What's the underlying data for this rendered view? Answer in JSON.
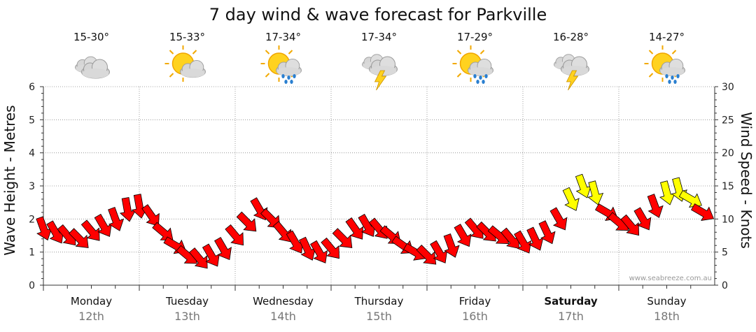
{
  "chart_data": {
    "type": "line",
    "title": "7 day wind & wave forecast for Parkville",
    "ylabel_left": "Wave Height - Metres",
    "ylabel_right": "Wind Speed - Knots",
    "ylim_left": [
      0,
      6
    ],
    "ylim_right": [
      0,
      30
    ],
    "left_ticks": [
      "0",
      "1",
      "2",
      "3",
      "4",
      "5",
      "6"
    ],
    "right_ticks": [
      "0",
      "5",
      "10",
      "15",
      "20",
      "25",
      "30"
    ],
    "credit": "www.seabreeze.com.au",
    "days": [
      {
        "name": "Monday",
        "date": "12th",
        "temp": "15-30°",
        "icon": "cloudy",
        "bold": false
      },
      {
        "name": "Tuesday",
        "date": "13th",
        "temp": "15-33°",
        "icon": "sun-cloud",
        "bold": false
      },
      {
        "name": "Wednesday",
        "date": "14th",
        "temp": "17-34°",
        "icon": "sun-rain",
        "bold": false
      },
      {
        "name": "Thursday",
        "date": "15th",
        "temp": "17-34°",
        "icon": "storm",
        "bold": false
      },
      {
        "name": "Friday",
        "date": "16th",
        "temp": "17-29°",
        "icon": "sun-rain",
        "bold": false
      },
      {
        "name": "Saturday",
        "date": "17th",
        "temp": "16-28°",
        "icon": "storm",
        "bold": true
      },
      {
        "name": "Sunday",
        "date": "18th",
        "temp": "14-27°",
        "icon": "sun-rain",
        "bold": false
      }
    ],
    "wind_series": {
      "name": "Wind Speed - Knots",
      "threshold_yellow": 12.5,
      "colors": {
        "low": "#ff0000",
        "high": "#ffff00",
        "outline": "#000000"
      },
      "hours": [
        0,
        3,
        6,
        9,
        12,
        15,
        18,
        21,
        24,
        27,
        30,
        33,
        36,
        39,
        42,
        45,
        48,
        51,
        54,
        57,
        60,
        63,
        66,
        69,
        72,
        75,
        78,
        81,
        84,
        87,
        90,
        93,
        96,
        99,
        102,
        105,
        108,
        111,
        114,
        117,
        120,
        123,
        126,
        129,
        132,
        135,
        138,
        141,
        144,
        147,
        150,
        153,
        156,
        159,
        162,
        165
      ],
      "speeds": [
        8.6,
        8.0,
        7.5,
        7.0,
        8.2,
        9.0,
        10.0,
        11.5,
        12.0,
        10.5,
        8.0,
        6.0,
        4.5,
        4.0,
        4.5,
        5.5,
        7.5,
        9.5,
        11.5,
        10.0,
        8.0,
        6.5,
        5.5,
        5.0,
        5.5,
        7.0,
        8.5,
        9.0,
        8.5,
        7.5,
        6.0,
        5.0,
        4.5,
        5.0,
        6.0,
        7.5,
        8.5,
        8.0,
        7.5,
        7.0,
        6.5,
        7.0,
        8.0,
        10.0,
        13.0,
        15.0,
        14.0,
        11.0,
        9.5,
        9.0,
        10.0,
        12.0,
        14.0,
        14.5,
        13.0,
        11.0
      ],
      "directions": [
        340,
        330,
        320,
        315,
        320,
        330,
        340,
        350,
        350,
        325,
        310,
        300,
        310,
        320,
        330,
        330,
        320,
        315,
        330,
        315,
        320,
        330,
        335,
        330,
        320,
        315,
        325,
        330,
        320,
        310,
        305,
        300,
        315,
        330,
        340,
        330,
        320,
        315,
        310,
        320,
        330,
        335,
        335,
        330,
        335,
        340,
        345,
        300,
        310,
        320,
        330,
        340,
        345,
        345,
        300,
        300
      ]
    }
  }
}
